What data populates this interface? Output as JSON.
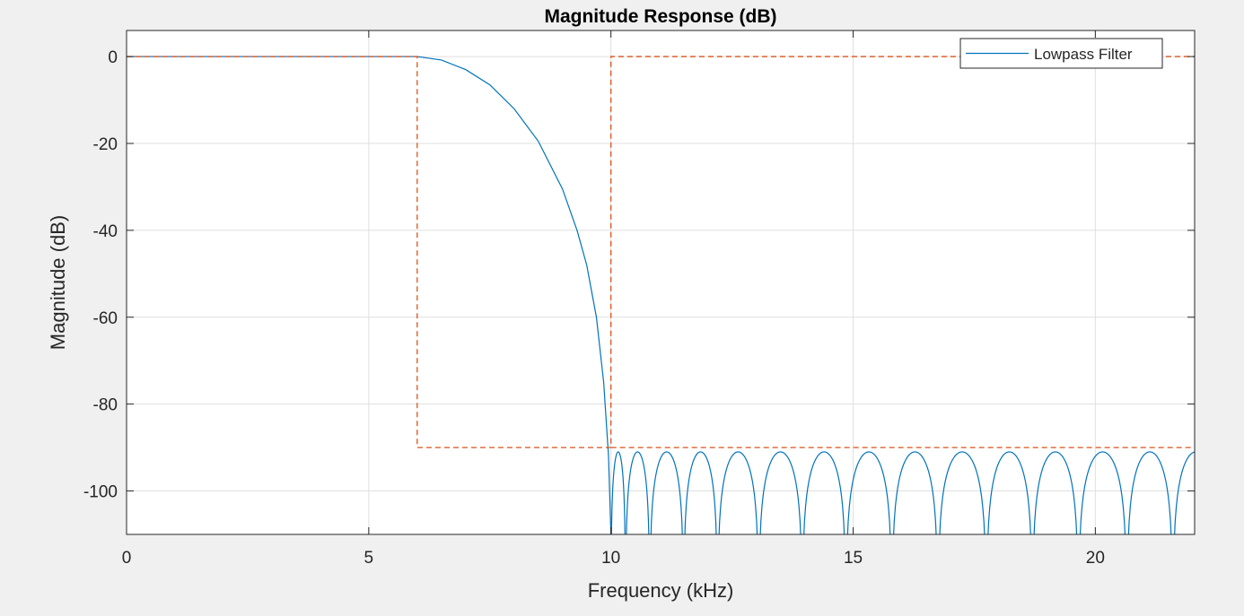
{
  "chart_data": {
    "type": "line",
    "title": "Magnitude Response (dB)",
    "xlabel": "Frequency (kHz)",
    "ylabel": "Magnitude (dB)",
    "xlim": [
      0,
      22.05
    ],
    "ylim": [
      -110,
      6
    ],
    "grid": true,
    "x_ticks": [
      0,
      5,
      10,
      15,
      20
    ],
    "x_tick_labels": [
      "0",
      "5",
      "10",
      "15",
      "20"
    ],
    "y_ticks": [
      0,
      -20,
      -40,
      -60,
      -80,
      -100
    ],
    "y_tick_labels": [
      "0",
      "-20",
      "-40",
      "-60",
      "-80",
      "-100"
    ],
    "legend": {
      "position": "top-right",
      "entries": [
        "Lowpass Filter"
      ]
    },
    "series": [
      {
        "name": "Lowpass Filter",
        "color": "#0072BD",
        "passband_x": [
          0,
          6,
          6.5,
          7,
          7.5,
          8,
          8.5,
          9,
          9.3,
          9.5,
          9.7,
          9.85,
          9.95,
          10.0
        ],
        "passband_y": [
          0,
          0,
          -0.8,
          -3,
          -6.5,
          -12,
          -19.5,
          -30.5,
          -40,
          -48,
          -60,
          -75,
          -92,
          -110
        ],
        "stopband_lobes": [
          {
            "start": 10.0,
            "end": 10.3,
            "peak": -91
          },
          {
            "start": 10.3,
            "end": 10.8,
            "peak": -91
          },
          {
            "start": 10.8,
            "end": 11.5,
            "peak": -91
          },
          {
            "start": 11.5,
            "end": 12.2,
            "peak": -91
          },
          {
            "start": 12.2,
            "end": 13.05,
            "peak": -91
          },
          {
            "start": 13.05,
            "end": 13.95,
            "peak": -91
          },
          {
            "start": 13.95,
            "end": 14.85,
            "peak": -91
          },
          {
            "start": 14.85,
            "end": 15.8,
            "peak": -91
          },
          {
            "start": 15.8,
            "end": 16.75,
            "peak": -91
          },
          {
            "start": 16.75,
            "end": 17.75,
            "peak": -91
          },
          {
            "start": 17.75,
            "end": 18.7,
            "peak": -91
          },
          {
            "start": 18.7,
            "end": 19.65,
            "peak": -91
          },
          {
            "start": 19.65,
            "end": 20.65,
            "peak": -91
          },
          {
            "start": 20.65,
            "end": 21.6,
            "peak": -91
          },
          {
            "start": 21.6,
            "end": 22.55,
            "peak": -91
          }
        ]
      },
      {
        "color": "#D95319",
        "style": "dashed",
        "x": [
          0,
          6,
          6,
          10,
          10,
          22.05
        ],
        "y": [
          0,
          0,
          -90,
          -90,
          0,
          0
        ]
      },
      {
        "color": "#D95319",
        "style": "dashed",
        "x": [
          10,
          22.05
        ],
        "y": [
          -90,
          -90
        ]
      }
    ]
  }
}
